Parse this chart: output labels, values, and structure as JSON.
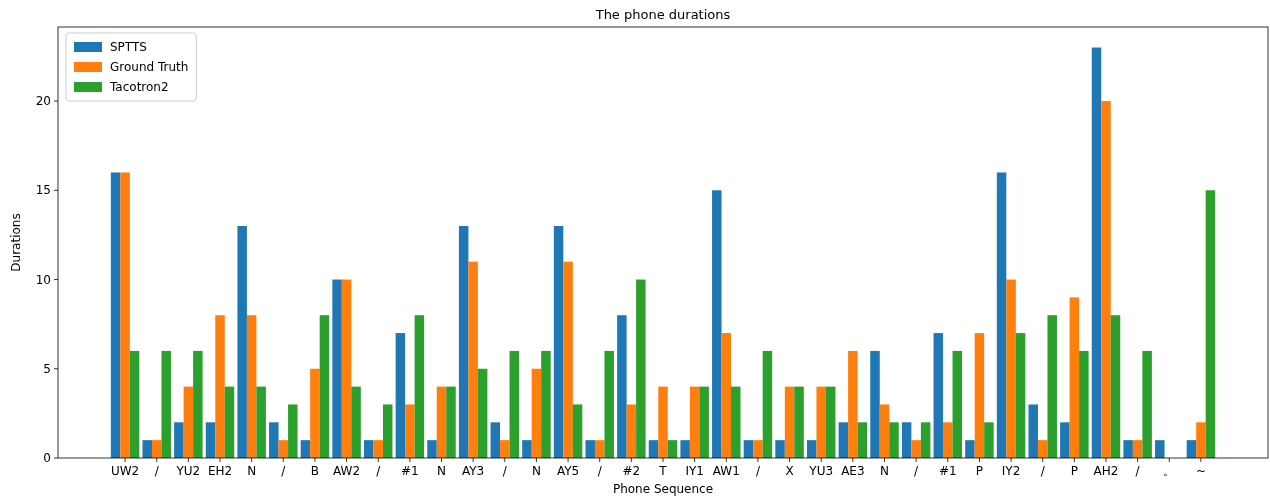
{
  "chart_data": {
    "type": "bar",
    "title": "The phone durations",
    "xlabel": "Phone Sequence",
    "ylabel": "Durations",
    "categories": [
      "UW2",
      "/",
      "YU2",
      "EH2",
      "N",
      "/",
      "B",
      "AW2",
      "/",
      "#1",
      "N",
      "AY3",
      "/",
      "N",
      "AY5",
      "/",
      "#2",
      "T",
      "IY1",
      "AW1",
      "/",
      "X",
      "YU3",
      "AE3",
      "N",
      "/",
      "#1",
      "P",
      "IY2",
      "/",
      "P",
      "AH2",
      "/",
      "。",
      "~"
    ],
    "series": [
      {
        "name": "SPTTS",
        "color": "#1f77b4",
        "values": [
          16,
          1,
          2,
          2,
          13,
          2,
          1,
          10,
          1,
          7,
          1,
          13,
          2,
          1,
          13,
          1,
          8,
          1,
          1,
          15,
          1,
          1,
          1,
          2,
          6,
          2,
          7,
          1,
          16,
          3,
          2,
          23,
          1,
          1,
          1
        ]
      },
      {
        "name": "Ground Truth",
        "color": "#ff7f0e",
        "values": [
          16,
          1,
          4,
          8,
          8,
          1,
          5,
          10,
          1,
          3,
          4,
          11,
          1,
          5,
          11,
          1,
          3,
          4,
          4,
          7,
          1,
          4,
          4,
          6,
          3,
          1,
          2,
          7,
          10,
          1,
          9,
          20,
          1,
          0,
          2
        ]
      },
      {
        "name": "Tacotron2",
        "color": "#2ca02c",
        "values": [
          6,
          6,
          6,
          4,
          4,
          3,
          8,
          4,
          3,
          8,
          4,
          5,
          6,
          6,
          3,
          6,
          10,
          1,
          4,
          4,
          6,
          4,
          4,
          2,
          2,
          2,
          6,
          2,
          7,
          8,
          6,
          8,
          6,
          0,
          15
        ]
      }
    ],
    "ylim": [
      0,
      24.15
    ],
    "yticks": [
      0,
      5,
      10,
      15,
      20
    ],
    "legend": "top left"
  }
}
